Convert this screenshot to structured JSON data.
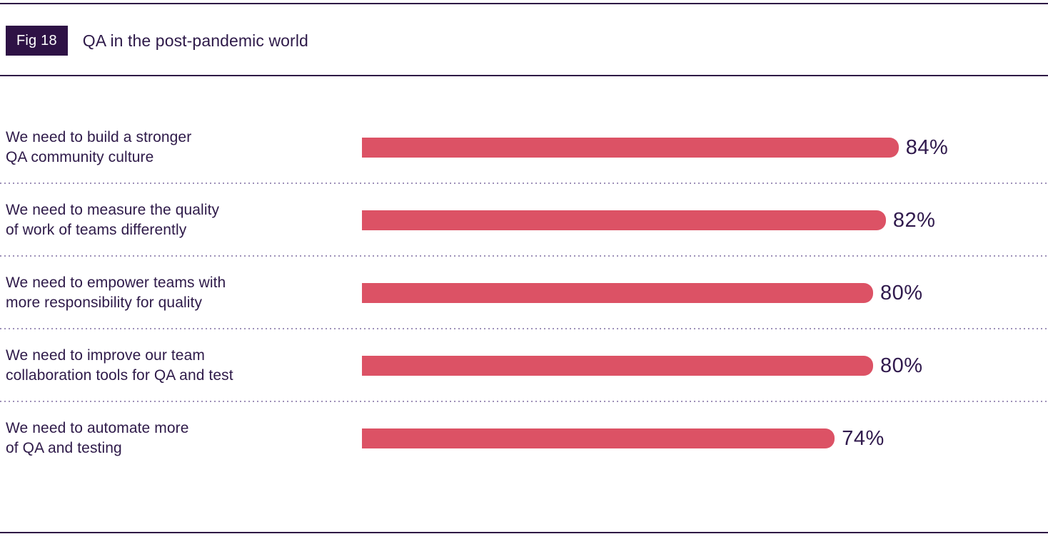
{
  "figure": {
    "tag": "Fig 18",
    "title": "QA in the post-pandemic world"
  },
  "chart_data": {
    "type": "bar",
    "orientation": "horizontal",
    "title": "QA in the post-pandemic world",
    "categories": [
      "We need to build a stronger\nQA community culture",
      "We need to measure the quality\nof work of teams differently",
      "We need to empower teams with\nmore responsibility for quality",
      "We need to improve our team\ncollaboration tools for QA and test",
      "We need to automate more\nof QA and testing"
    ],
    "values": [
      84,
      82,
      80,
      80,
      74
    ],
    "value_labels": [
      "84%",
      "82%",
      "80%",
      "80%",
      "74%"
    ],
    "xlim": [
      0,
      100
    ],
    "xlabel": "",
    "ylabel": "",
    "grid": "dotted horizontal separators between rows",
    "legend": "none",
    "colors": {
      "bar": "#dc5265",
      "text": "#2e1a49",
      "badge_background": "#2e1245",
      "badge_text": "#ffffff",
      "separator_dots": "#9d90b8",
      "rules": "#2e1245"
    }
  }
}
